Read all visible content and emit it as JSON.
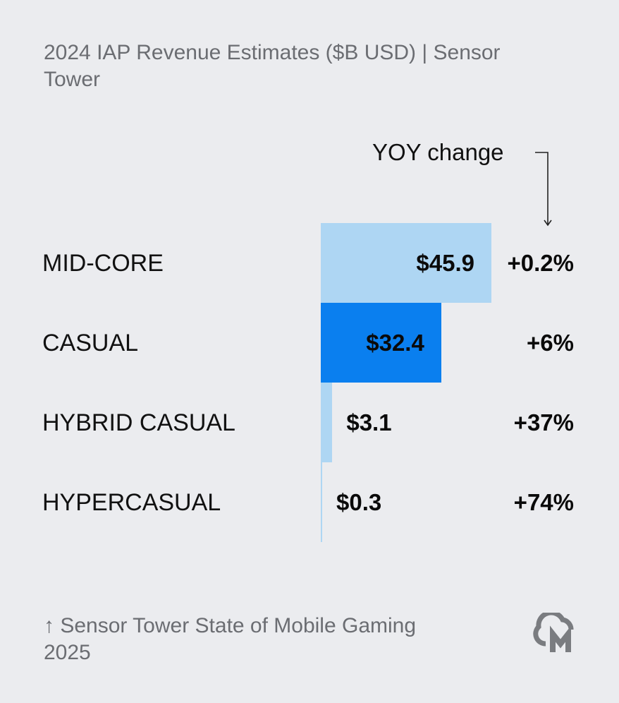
{
  "title": "2024 IAP Revenue Estimates ($B USD) | Sensor Tower",
  "yoy_header": "YOY change",
  "source": "↑ Sensor Tower State of Mobile Gaming 2025",
  "logo_icon": "cloud-m-logo-icon",
  "colors": {
    "background": "#ebecef",
    "bar_light": "#aed6f3",
    "bar_highlight": "#0a7fef",
    "muted_text": "#6b6d72"
  },
  "chart_data": {
    "type": "bar",
    "orientation": "horizontal",
    "title": "2024 IAP Revenue Estimates ($B USD) | Sensor Tower",
    "categories": [
      "MID-CORE",
      "CASUAL",
      "HYBRID CASUAL",
      "HYPERCASUAL"
    ],
    "values": [
      45.9,
      32.4,
      3.1,
      0.3
    ],
    "value_labels": [
      "$45.9",
      "$32.4",
      "$3.1",
      "$0.3"
    ],
    "yoy_change": [
      "+0.2%",
      "+6%",
      "+37%",
      "+74%"
    ],
    "highlight_index": 1,
    "xlim": [
      0,
      45.9
    ],
    "grid": false,
    "legend": "none"
  }
}
